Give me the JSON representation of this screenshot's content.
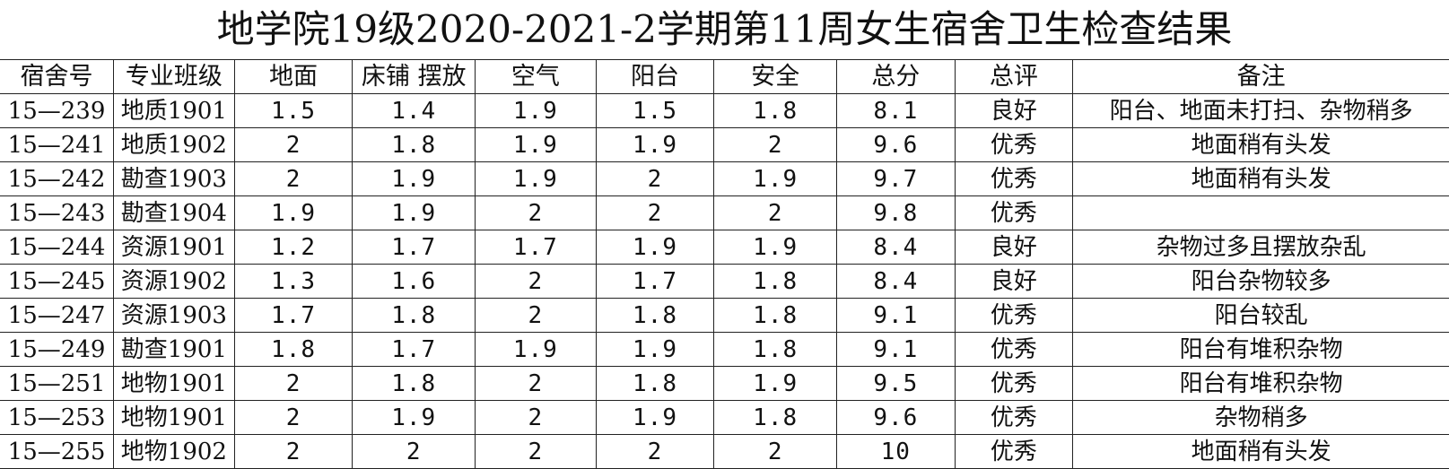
{
  "title": "地学院19级2020-2021-2学期第11周女生宿舍卫生检查结果",
  "headers": [
    "宿舍号",
    "专业班级",
    "地面",
    "床铺 摆放",
    "空气",
    "阳台",
    "安全",
    "总分",
    "总评",
    "备注"
  ],
  "rows": [
    {
      "room": "15—239",
      "class": "地质1901",
      "floor": "1.5",
      "bed": "1.4",
      "air": "1.9",
      "balcony": "1.5",
      "safety": "1.8",
      "total": "8.1",
      "grade": "良好",
      "note": "阳台、地面未打扫、杂物稍多"
    },
    {
      "room": "15—241",
      "class": "地质1902",
      "floor": "2",
      "bed": "1.8",
      "air": "1.9",
      "balcony": "1.9",
      "safety": "2",
      "total": "9.6",
      "grade": "优秀",
      "note": "地面稍有头发"
    },
    {
      "room": "15—242",
      "class": "勘查1903",
      "floor": "2",
      "bed": "1.9",
      "air": "1.9",
      "balcony": "2",
      "safety": "1.9",
      "total": "9.7",
      "grade": "优秀",
      "note": "地面稍有头发"
    },
    {
      "room": "15—243",
      "class": "勘查1904",
      "floor": "1.9",
      "bed": "1.9",
      "air": "2",
      "balcony": "2",
      "safety": "2",
      "total": "9.8",
      "grade": "优秀",
      "note": ""
    },
    {
      "room": "15—244",
      "class": "资源1901",
      "floor": "1.2",
      "bed": "1.7",
      "air": "1.7",
      "balcony": "1.9",
      "safety": "1.9",
      "total": "8.4",
      "grade": "良好",
      "note": "杂物过多且摆放杂乱"
    },
    {
      "room": "15—245",
      "class": "资源1902",
      "floor": "1.3",
      "bed": "1.6",
      "air": "2",
      "balcony": "1.7",
      "safety": "1.8",
      "total": "8.4",
      "grade": "良好",
      "note": "阳台杂物较多"
    },
    {
      "room": "15—247",
      "class": "资源1903",
      "floor": "1.7",
      "bed": "1.8",
      "air": "2",
      "balcony": "1.8",
      "safety": "1.8",
      "total": "9.1",
      "grade": "优秀",
      "note": "阳台较乱"
    },
    {
      "room": "15—249",
      "class": "勘查1901",
      "floor": "1.8",
      "bed": "1.7",
      "air": "1.9",
      "balcony": "1.9",
      "safety": "1.8",
      "total": "9.1",
      "grade": "优秀",
      "note": "阳台有堆积杂物"
    },
    {
      "room": "15—251",
      "class": "地物1901",
      "floor": "2",
      "bed": "1.8",
      "air": "2",
      "balcony": "1.8",
      "safety": "1.9",
      "total": "9.5",
      "grade": "优秀",
      "note": "阳台有堆积杂物"
    },
    {
      "room": "15—253",
      "class": "地物1901",
      "floor": "2",
      "bed": "1.9",
      "air": "2",
      "balcony": "1.9",
      "safety": "1.8",
      "total": "9.6",
      "grade": "优秀",
      "note": "杂物稍多"
    },
    {
      "room": "15—255",
      "class": "地物1902",
      "floor": "2",
      "bed": "2",
      "air": "2",
      "balcony": "2",
      "safety": "2",
      "total": "10",
      "grade": "优秀",
      "note": "地面稍有头发"
    }
  ]
}
